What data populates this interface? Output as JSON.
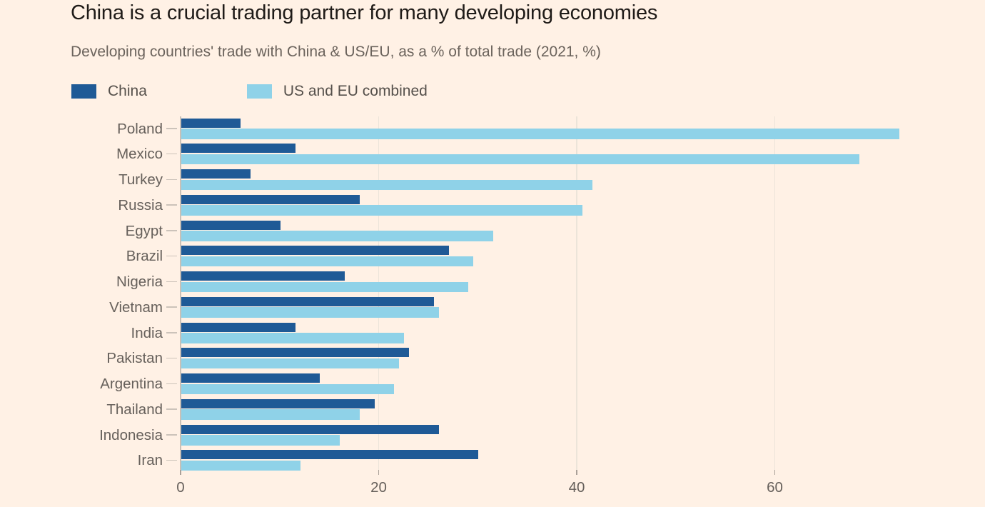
{
  "title": "China is a crucial trading partner for many developing economies",
  "subtitle": "Developing countries' trade with China & US/EU, as a % of total trade (2021, %)",
  "legend": [
    {
      "label": "China",
      "color": "#1f5a96"
    },
    {
      "label": "US and EU combined",
      "color": "#8fd2e8"
    }
  ],
  "colors": {
    "background": "#FFF1E5",
    "china_bar": "#1f5a96",
    "us_eu_bar": "#8fd2e8",
    "title_text": "#1f1b18",
    "subtitle_text": "#6b635c",
    "axis_text": "#66605b",
    "gridline": "#ece4d9",
    "zero_line": "#c9c0b7"
  },
  "chart_data": {
    "type": "bar",
    "orientation": "horizontal",
    "title": "China is a crucial trading partner for many developing economies",
    "subtitle": "Developing countries' trade with China & US/EU, as a % of total trade (2021, %)",
    "xlabel": "",
    "ylabel": "",
    "xlim": [
      0,
      80
    ],
    "xticks": [
      0,
      20,
      40,
      60
    ],
    "xtick_labels": [
      "0",
      "20",
      "40",
      "60"
    ],
    "grid": true,
    "legend_position": "top",
    "categories": [
      "Poland",
      "Mexico",
      "Turkey",
      "Russia",
      "Egypt",
      "Brazil",
      "Nigeria",
      "Vietnam",
      "India",
      "Pakistan",
      "Argentina",
      "Thailand",
      "Indonesia",
      "Iran"
    ],
    "series": [
      {
        "name": "China",
        "color": "#1f5a96",
        "values": [
          6,
          11.5,
          7,
          18,
          10,
          27,
          16.5,
          25.5,
          11.5,
          23,
          14,
          19.5,
          26,
          30
        ]
      },
      {
        "name": "US and EU combined",
        "color": "#8fd2e8",
        "values": [
          72.5,
          68.5,
          41.5,
          40.5,
          31.5,
          29.5,
          29,
          26,
          22.5,
          22,
          21.5,
          18,
          16,
          12
        ]
      }
    ]
  }
}
